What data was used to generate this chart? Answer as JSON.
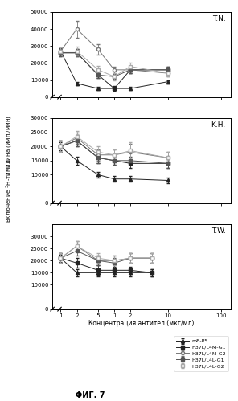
{
  "panel_labels": [
    "T.N.",
    "K.H.",
    "T.W."
  ],
  "series_order": [
    "mB-P5",
    "H37L/L4M-G1",
    "H37L/L4M-G2",
    "H37L/L4L-G1",
    "H37L/L4L-G2"
  ],
  "ylabel": "Включение ³H-тимидина (имп./мин)",
  "xlabel": "Концентрация антител (мкг/мл)",
  "fig_title": "ΦИГ. 7",
  "line_styles": {
    "mB-P5": {
      "color": "#222222",
      "marker": "^",
      "fillstyle": "full",
      "ls": "-",
      "ms": 3.5
    },
    "H37L/L4M-G1": {
      "color": "#222222",
      "marker": "s",
      "fillstyle": "full",
      "ls": "-",
      "ms": 3.5
    },
    "H37L/L4M-G2": {
      "color": "#777777",
      "marker": "o",
      "fillstyle": "none",
      "ls": "-",
      "ms": 3.5
    },
    "H37L/L4L-G1": {
      "color": "#555555",
      "marker": "s",
      "fillstyle": "full",
      "ls": "-",
      "ms": 3.5
    },
    "H37L/L4L-G2": {
      "color": "#aaaaaa",
      "marker": "s",
      "fillstyle": "none",
      "ls": "-",
      "ms": 3.5
    }
  },
  "TN": {
    "ylim": [
      0,
      50000
    ],
    "yticks": [
      0,
      10000,
      20000,
      30000,
      40000,
      50000
    ],
    "ytick_labels": [
      "0",
      "10000",
      "20000",
      "30000",
      "40000",
      "50000"
    ],
    "series": {
      "mB-P5": {
        "x": [
          0.1,
          0.2,
          0.5,
          1.0,
          2.0,
          10.0
        ],
        "y": [
          27000,
          8000,
          5000,
          5000,
          5000,
          9000
        ],
        "yerr": [
          1500,
          1000,
          800,
          800,
          800,
          1000
        ]
      },
      "H37L/L4M-G1": {
        "x": [
          0.1,
          0.2,
          0.5,
          1.0,
          2.0,
          10.0
        ],
        "y": [
          26000,
          26000,
          13000,
          5000,
          16000,
          16000
        ],
        "yerr": [
          2000,
          2000,
          2000,
          1500,
          2000,
          2000
        ]
      },
      "H37L/L4M-G2": {
        "x": [
          0.1,
          0.2,
          0.5,
          1.0,
          2.0,
          10.0
        ],
        "y": [
          27000,
          40000,
          28000,
          16000,
          16000,
          14000
        ],
        "yerr": [
          2000,
          5000,
          3000,
          2000,
          2000,
          2000
        ]
      },
      "H37L/L4L-G1": {
        "x": [
          0.1,
          0.2,
          0.5,
          1.0,
          2.0,
          10.0
        ],
        "y": [
          26000,
          26000,
          13000,
          12000,
          16000,
          16000
        ],
        "yerr": [
          2000,
          2000,
          2000,
          1500,
          2000,
          2000
        ]
      },
      "H37L/L4L-G2": {
        "x": [
          0.1,
          0.2,
          0.5,
          1.0,
          2.0,
          10.0
        ],
        "y": [
          27000,
          27000,
          16000,
          12000,
          18000,
          14000
        ],
        "yerr": [
          2000,
          2500,
          2500,
          2000,
          2000,
          2000
        ]
      }
    }
  },
  "KH": {
    "ylim": [
      0,
      30000
    ],
    "yticks": [
      0,
      10000,
      15000,
      20000,
      25000,
      30000
    ],
    "ytick_labels": [
      "0",
      "10000",
      "15000",
      "20000",
      "25000",
      "30000"
    ],
    "series": {
      "mB-P5": {
        "x": [
          0.1,
          0.2,
          0.5,
          1.0,
          2.0,
          10.0
        ],
        "y": [
          20000,
          15000,
          10000,
          8500,
          8500,
          8000
        ],
        "yerr": [
          1500,
          1500,
          1000,
          1000,
          1000,
          1000
        ]
      },
      "H37L/L4M-G1": {
        "x": [
          0.1,
          0.2,
          0.5,
          1.0,
          2.0,
          10.0
        ],
        "y": [
          20000,
          22000,
          16000,
          15000,
          14000,
          14000
        ],
        "yerr": [
          2000,
          2000,
          2000,
          1500,
          1500,
          1500
        ]
      },
      "H37L/L4M-G2": {
        "x": [
          0.1,
          0.2,
          0.5,
          1.0,
          2.0,
          10.0
        ],
        "y": [
          20000,
          23000,
          17000,
          17000,
          18000,
          16000
        ],
        "yerr": [
          2000,
          2000,
          2000,
          2000,
          3000,
          2000
        ]
      },
      "H37L/L4L-G1": {
        "x": [
          0.1,
          0.2,
          0.5,
          1.0,
          2.0,
          10.0
        ],
        "y": [
          20000,
          22000,
          16000,
          15000,
          15000,
          14000
        ],
        "yerr": [
          2000,
          2000,
          2000,
          1500,
          1500,
          1500
        ]
      },
      "H37L/L4L-G2": {
        "x": [
          0.1,
          0.2,
          0.5,
          1.0,
          2.0,
          10.0
        ],
        "y": [
          20000,
          23500,
          18000,
          17000,
          18500,
          16000
        ],
        "yerr": [
          2000,
          2000,
          2000,
          2000,
          3000,
          2000
        ]
      }
    }
  },
  "TW": {
    "ylim": [
      0,
      35000
    ],
    "yticks": [
      0,
      10000,
      15000,
      20000,
      25000,
      30000
    ],
    "ytick_labels": [
      "0",
      "10000",
      "15000",
      "20000",
      "25000",
      "30000"
    ],
    "series": {
      "mB-P5": {
        "x": [
          0.1,
          0.2,
          0.5,
          1.0,
          2.0,
          5.0
        ],
        "y": [
          21000,
          15000,
          15000,
          15000,
          15000,
          15000
        ],
        "yerr": [
          1500,
          1500,
          1500,
          1500,
          1500,
          1500
        ]
      },
      "H37L/L4M-G1": {
        "x": [
          0.1,
          0.2,
          0.5,
          1.0,
          2.0,
          5.0
        ],
        "y": [
          21000,
          19000,
          16000,
          16000,
          16000,
          15000
        ],
        "yerr": [
          2000,
          2000,
          2000,
          1500,
          1500,
          1500
        ]
      },
      "H37L/L4M-G2": {
        "x": [
          0.1,
          0.2,
          0.5,
          1.0,
          2.0,
          5.0
        ],
        "y": [
          21000,
          26000,
          20000,
          20000,
          21000,
          21000
        ],
        "yerr": [
          2000,
          2000,
          2000,
          2000,
          2000,
          2000
        ]
      },
      "H37L/L4L-G1": {
        "x": [
          0.1,
          0.2,
          0.5,
          1.0,
          2.0,
          5.0
        ],
        "y": [
          21000,
          24000,
          20000,
          19000,
          21000,
          21000
        ],
        "yerr": [
          2000,
          2000,
          2000,
          2000,
          2000,
          2000
        ]
      },
      "H37L/L4L-G2": {
        "x": [
          0.1,
          0.2,
          0.5,
          1.0,
          2.0,
          5.0
        ],
        "y": [
          21000,
          26000,
          21000,
          20000,
          21000,
          21000
        ],
        "yerr": [
          2000,
          2000,
          2000,
          2000,
          2000,
          2000
        ]
      }
    }
  }
}
